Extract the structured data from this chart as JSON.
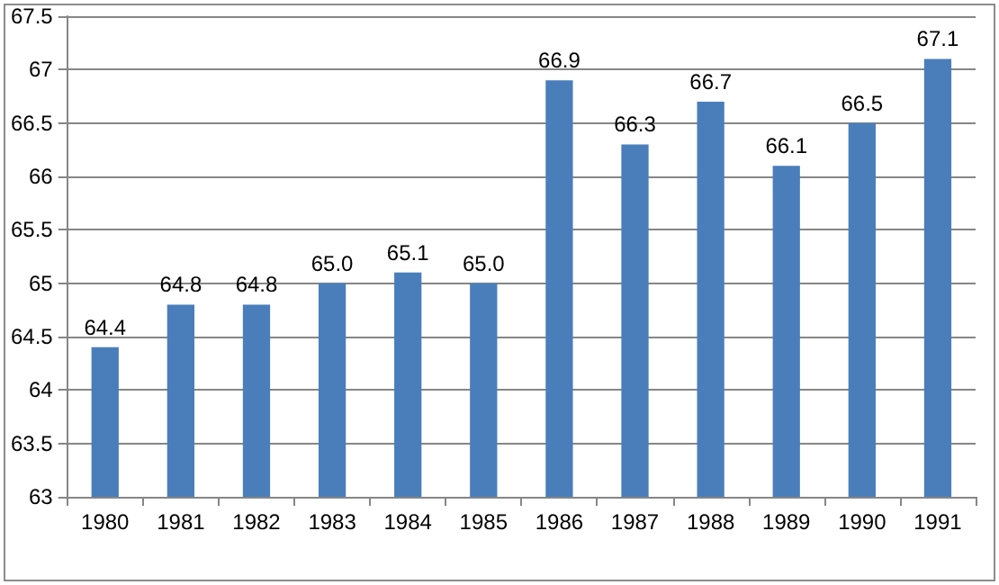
{
  "chart_data": {
    "type": "bar",
    "categories": [
      "1980",
      "1981",
      "1982",
      "1983",
      "1984",
      "1985",
      "1986",
      "1987",
      "1988",
      "1989",
      "1990",
      "1991"
    ],
    "values": [
      64.4,
      64.8,
      64.8,
      65.0,
      65.1,
      65.0,
      66.9,
      66.3,
      66.7,
      66.1,
      66.5,
      67.1
    ],
    "value_labels": [
      "64.4",
      "64.8",
      "64.8",
      "65.0",
      "65.1",
      "65.0",
      "66.9",
      "66.3",
      "66.7",
      "66.1",
      "66.5",
      "67.1"
    ],
    "color": "#4a7ebb",
    "ylim": [
      63,
      67.5
    ],
    "yticks": [
      63,
      63.5,
      64,
      64.5,
      65,
      65.5,
      66,
      66.5,
      67,
      67.5
    ],
    "grid": "y"
  }
}
